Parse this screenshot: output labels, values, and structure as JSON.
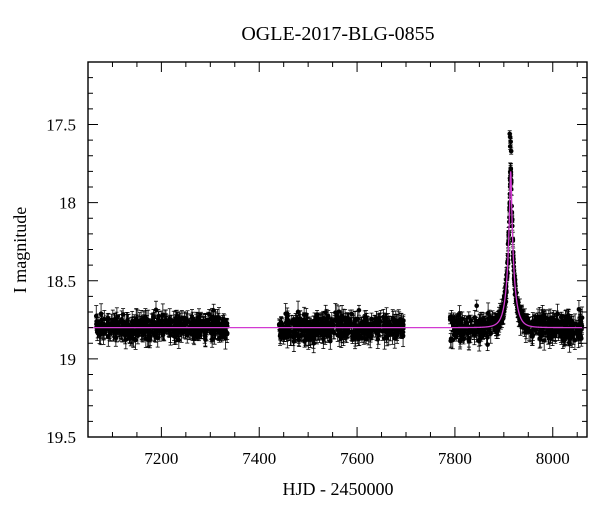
{
  "chart_data": {
    "type": "scatter",
    "title": "OGLE-2017-BLG-0855",
    "xlabel": "HJD - 2450000",
    "ylabel": "I magnitude",
    "xlim": [
      7050,
      8070
    ],
    "ylim": [
      19.5,
      17.1
    ],
    "y_inverted": true,
    "x_ticks": [
      7200,
      7400,
      7600,
      7800,
      8000
    ],
    "x_tick_labels": [
      "7200",
      "7400",
      "7600",
      "7800",
      "8000"
    ],
    "y_ticks": [
      17.5,
      18,
      18.5,
      19,
      19.5
    ],
    "y_tick_labels": [
      "17.5",
      "18",
      "18.5",
      "19",
      "19.5"
    ],
    "grid": false,
    "legend": "none",
    "observation_seasons": [
      {
        "start": 7065,
        "end": 7335
      },
      {
        "start": 7440,
        "end": 7695
      },
      {
        "start": 7790,
        "end": 8060
      }
    ],
    "baseline_magnitude": 18.8,
    "baseline_scatter": 0.1,
    "peak_time": 7914,
    "peak_model_magnitude": 17.8,
    "peak_data_points": [
      {
        "x": 7912,
        "y": 17.56
      },
      {
        "x": 7913,
        "y": 17.58
      },
      {
        "x": 7914,
        "y": 17.61
      },
      {
        "x": 7913,
        "y": 17.64
      },
      {
        "x": 7915,
        "y": 17.67
      }
    ],
    "series": [
      {
        "label_type": "observed data",
        "color": "#000000",
        "marker": "filled-circle-with-errorbars"
      },
      {
        "label_type": "model fit",
        "color": "#d23ad2",
        "marker": "line"
      }
    ]
  }
}
